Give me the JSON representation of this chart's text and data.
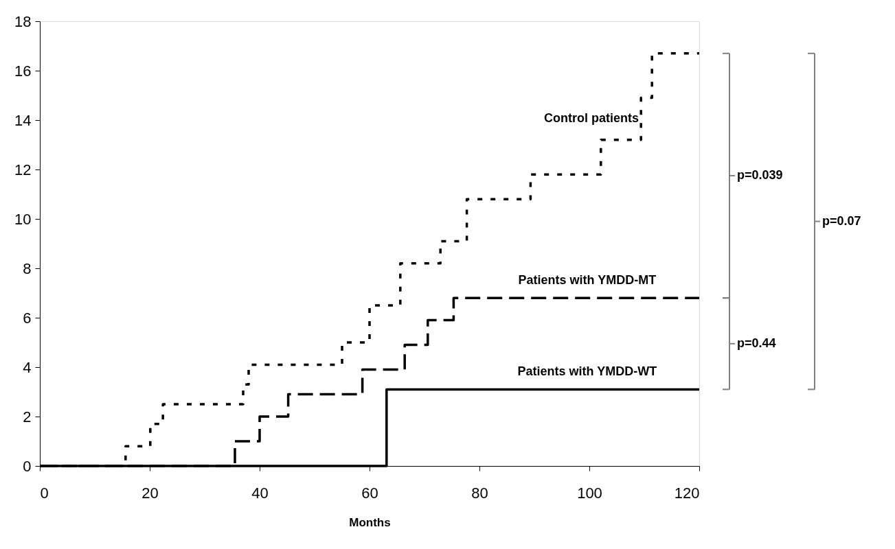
{
  "chart_data": {
    "type": "step",
    "xlabel": "Months",
    "xlim": [
      0,
      120
    ],
    "xticks": [
      0,
      20,
      40,
      60,
      80,
      100,
      120
    ],
    "ylim": [
      0,
      18
    ],
    "yticks": [
      0,
      2,
      4,
      6,
      8,
      10,
      12,
      14,
      16,
      18
    ],
    "series": [
      {
        "name": "Control patients",
        "color": "#000000",
        "line_style": "dotted",
        "x": [
          0,
          15.6,
          20.1,
          22.4,
          37,
          38,
          55,
          60,
          65.6,
          72.9,
          77.7,
          89.3,
          102.1,
          109.4,
          111.4,
          120
        ],
        "values": [
          0,
          0.8,
          1.7,
          2.5,
          3.3,
          4.1,
          5.0,
          6.5,
          8.2,
          9.1,
          10.8,
          11.8,
          13.2,
          14.9,
          16.7,
          16.7
        ]
      },
      {
        "name": "Patients with YMDD-MT",
        "color": "#000000",
        "line_style": "dashed",
        "x": [
          0,
          35.5,
          40,
          45.2,
          58.7,
          66.4,
          70.6,
          75.3,
          120
        ],
        "values": [
          0,
          1.0,
          2.0,
          2.9,
          3.9,
          4.9,
          5.9,
          6.8,
          6.8
        ]
      },
      {
        "name": "Patients with YMDD-WT",
        "color": "#000000",
        "line_style": "solid",
        "x": [
          0,
          63.1,
          120
        ],
        "values": [
          0,
          3.1,
          3.1
        ]
      }
    ],
    "annotations": [
      "p=0.039",
      "p=0.44",
      "p=0.07"
    ]
  }
}
